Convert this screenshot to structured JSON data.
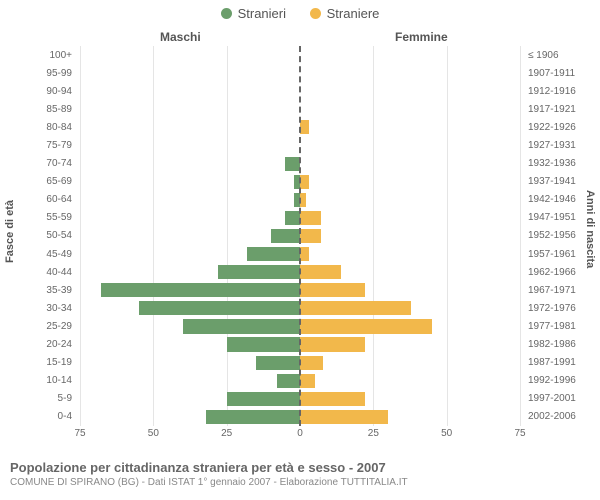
{
  "chart": {
    "type": "population-pyramid",
    "background_color": "#ffffff",
    "grid_color": "#e5e5e5",
    "center_line_color": "#666666",
    "legend": [
      {
        "label": "Stranieri",
        "color": "#6b9e6b"
      },
      {
        "label": "Straniere",
        "color": "#f2b84b"
      }
    ],
    "header_left": "Maschi",
    "header_right": "Femmine",
    "y_axis_left_title": "Fasce di età",
    "y_axis_right_title": "Anni di nascita",
    "tick_fontsize": 10,
    "label_fontsize": 11,
    "title_fontsize": 13,
    "xlim": 75,
    "x_ticks_left": [
      75,
      50,
      25,
      0
    ],
    "x_ticks_right": [
      0,
      25,
      50,
      75
    ],
    "age_bands": [
      "0-4",
      "5-9",
      "10-14",
      "15-19",
      "20-24",
      "25-29",
      "30-34",
      "35-39",
      "40-44",
      "45-49",
      "50-54",
      "55-59",
      "60-64",
      "65-69",
      "70-74",
      "75-79",
      "80-84",
      "85-89",
      "90-94",
      "95-99",
      "100+"
    ],
    "birth_years": [
      "2002-2006",
      "1997-2001",
      "1992-1996",
      "1987-1991",
      "1982-1986",
      "1977-1981",
      "1972-1976",
      "1967-1971",
      "1962-1966",
      "1957-1961",
      "1952-1956",
      "1947-1951",
      "1942-1946",
      "1937-1941",
      "1932-1936",
      "1927-1931",
      "1922-1926",
      "1917-1921",
      "1912-1916",
      "1907-1911",
      "≤ 1906"
    ],
    "male_values": [
      32,
      25,
      8,
      15,
      25,
      40,
      55,
      68,
      28,
      18,
      10,
      5,
      2,
      2,
      5,
      0,
      0,
      0,
      0,
      0,
      0
    ],
    "female_values": [
      30,
      22,
      5,
      8,
      22,
      45,
      38,
      22,
      14,
      3,
      7,
      7,
      2,
      3,
      0,
      0,
      3,
      0,
      0,
      0,
      0
    ],
    "male_color": "#6b9e6b",
    "female_color": "#f2b84b",
    "bar_height_ratio": 0.78
  },
  "footer": {
    "title": "Popolazione per cittadinanza straniera per età e sesso - 2007",
    "subtitle": "COMUNE DI SPIRANO (BG) - Dati ISTAT 1° gennaio 2007 - Elaborazione TUTTITALIA.IT"
  }
}
